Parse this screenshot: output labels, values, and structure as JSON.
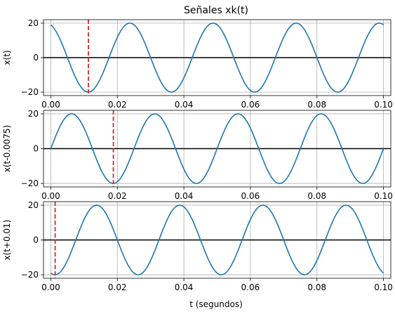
{
  "chart_data": {
    "type": "line",
    "title": "Señales xk(t)",
    "xlabel": "t (segundos)",
    "subplots": [
      {
        "ylabel": "x(t)",
        "xlim": [
          -0.0022,
          0.1022
        ],
        "ylim": [
          -22,
          22
        ],
        "xticks": [
          0.0,
          0.02,
          0.04,
          0.06,
          0.08,
          0.1
        ],
        "xtick_labels": [
          "0.00",
          "0.02",
          "0.04",
          "0.06",
          "0.08",
          "0.10"
        ],
        "yticks": [
          -20,
          0,
          20
        ],
        "ytick_labels": [
          "−20",
          "0",
          "20"
        ],
        "grid": true,
        "signal": {
          "amplitude": 20,
          "frequency_hz": 40,
          "t_shift": 0,
          "phase_deg": 18.0,
          "t_range": [
            0,
            0.1
          ]
        },
        "vline_t": 0.0113,
        "series_color": "#1f77b4",
        "vline_color": "#d62728"
      },
      {
        "ylabel": "x(t-0.0075)",
        "xlim": [
          -0.0022,
          0.1022
        ],
        "ylim": [
          -22,
          22
        ],
        "xticks": [
          0.0,
          0.02,
          0.04,
          0.06,
          0.08,
          0.1
        ],
        "xtick_labels": [
          "0.00",
          "0.02",
          "0.04",
          "0.06",
          "0.08",
          "0.10"
        ],
        "yticks": [
          -20,
          0,
          20
        ],
        "ytick_labels": [
          "−20",
          "0",
          "20"
        ],
        "grid": true,
        "signal": {
          "amplitude": 20,
          "frequency_hz": 40,
          "t_shift": -0.0075,
          "phase_deg": 18.0,
          "t_range": [
            0,
            0.1
          ]
        },
        "vline_t": 0.0188,
        "series_color": "#1f77b4",
        "vline_color": "#d62728"
      },
      {
        "ylabel": "x(t+0.01)",
        "xlim": [
          -0.0022,
          0.1022
        ],
        "ylim": [
          -22,
          22
        ],
        "xticks": [
          0.0,
          0.02,
          0.04,
          0.06,
          0.08,
          0.1
        ],
        "xtick_labels": [
          "0.00",
          "0.02",
          "0.04",
          "0.06",
          "0.08",
          "0.10"
        ],
        "yticks": [
          -20,
          0,
          20
        ],
        "ytick_labels": [
          "−20",
          "0",
          "20"
        ],
        "grid": true,
        "signal": {
          "amplitude": 20,
          "frequency_hz": 40,
          "t_shift": 0.01,
          "phase_deg": 18.0,
          "t_range": [
            0,
            0.1
          ]
        },
        "vline_t": 0.0013,
        "series_color": "#1f77b4",
        "vline_color": "#d62728"
      }
    ]
  }
}
